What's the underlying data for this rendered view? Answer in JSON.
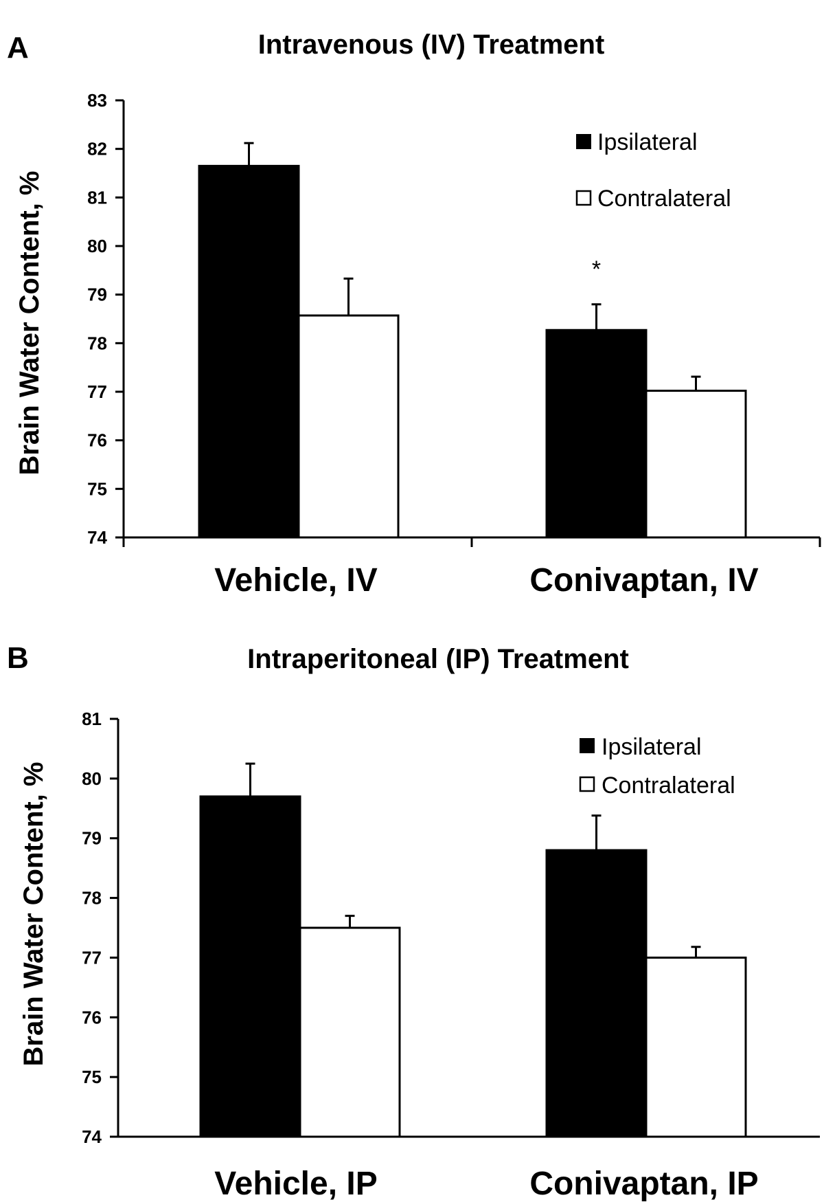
{
  "chart_data": [
    {
      "panel": "A",
      "type": "bar",
      "title": "Intravenous (IV) Treatment",
      "xlabel": "",
      "ylabel": "Brain Water Content, %",
      "ylim": [
        74,
        83
      ],
      "yticks": [
        "74",
        "75",
        "76",
        "77",
        "78",
        "79",
        "80",
        "81",
        "82",
        "83"
      ],
      "categories": [
        "Vehicle, IV",
        "Conivaptan, IV"
      ],
      "series": [
        {
          "name": "Ipsilateral",
          "color": "#000000",
          "values": [
            81.65,
            78.27
          ],
          "errors": [
            0.47,
            0.53
          ]
        },
        {
          "name": "Contralateral",
          "color": "#ffffff",
          "values": [
            78.57,
            77.02
          ],
          "errors": [
            0.76,
            0.29
          ]
        }
      ],
      "annotations": [
        {
          "text": "*",
          "category": "Conivaptan, IV",
          "series": "Ipsilateral"
        }
      ],
      "legend_position": "top-right",
      "grid": false
    },
    {
      "panel": "B",
      "type": "bar",
      "title": "Intraperitoneal (IP) Treatment",
      "xlabel": "",
      "ylabel": "Brain Water Content, %",
      "ylim": [
        74,
        81
      ],
      "yticks": [
        "74",
        "75",
        "76",
        "77",
        "78",
        "79",
        "80",
        "81"
      ],
      "categories": [
        "Vehicle, IP",
        "Conivaptan, IP"
      ],
      "series": [
        {
          "name": "Ipsilateral",
          "color": "#000000",
          "values": [
            79.7,
            78.8
          ],
          "errors": [
            0.55,
            0.58
          ]
        },
        {
          "name": "Contralateral",
          "color": "#ffffff",
          "values": [
            77.5,
            77.0
          ],
          "errors": [
            0.2,
            0.18
          ]
        }
      ],
      "annotations": [],
      "legend_position": "top-right",
      "grid": false
    }
  ]
}
